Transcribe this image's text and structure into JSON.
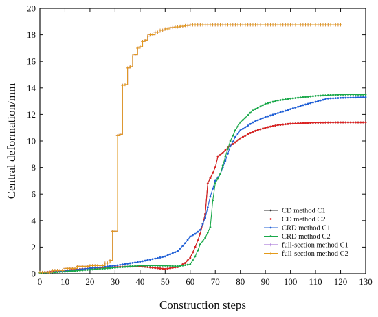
{
  "chart_data": {
    "type": "line",
    "title": "",
    "xlabel": "Construction steps",
    "ylabel": "Central deformation/mm",
    "xlim": [
      0,
      130
    ],
    "ylim": [
      0,
      20
    ],
    "xticks": [
      0,
      10,
      20,
      30,
      40,
      50,
      60,
      70,
      80,
      90,
      100,
      110,
      120,
      130
    ],
    "yticks": [
      0,
      2,
      4,
      6,
      8,
      10,
      12,
      14,
      16,
      18,
      20
    ],
    "grid": false,
    "legend_position": "lower-right",
    "series": [
      {
        "name": "CD method C1",
        "color": "#333333",
        "marker": "dot",
        "points": [
          [
            0,
            0.08
          ],
          [
            10,
            0.25
          ],
          [
            20,
            0.4
          ],
          [
            30,
            0.5
          ],
          [
            40,
            0.55
          ],
          [
            50,
            0.35
          ],
          [
            55,
            0.5
          ],
          [
            58,
            0.8
          ],
          [
            60,
            1.2
          ],
          [
            62,
            2.0
          ],
          [
            64,
            3.0
          ],
          [
            66,
            4.5
          ],
          [
            67,
            6.8
          ],
          [
            68,
            7.2
          ],
          [
            70,
            8.0
          ],
          [
            71,
            8.8
          ],
          [
            73,
            9.1
          ],
          [
            75,
            9.5
          ],
          [
            78,
            9.9
          ],
          [
            80,
            10.2
          ],
          [
            85,
            10.7
          ],
          [
            90,
            11.0
          ],
          [
            95,
            11.2
          ],
          [
            100,
            11.3
          ],
          [
            110,
            11.38
          ],
          [
            120,
            11.4
          ],
          [
            130,
            11.4
          ]
        ]
      },
      {
        "name": "CD method C2",
        "color": "#e02020",
        "marker": "dot",
        "points": [
          [
            0,
            0.08
          ],
          [
            10,
            0.25
          ],
          [
            20,
            0.4
          ],
          [
            30,
            0.5
          ],
          [
            40,
            0.55
          ],
          [
            50,
            0.35
          ],
          [
            55,
            0.5
          ],
          [
            58,
            0.8
          ],
          [
            60,
            1.2
          ],
          [
            62,
            2.0
          ],
          [
            64,
            3.0
          ],
          [
            66,
            4.5
          ],
          [
            67,
            6.8
          ],
          [
            68,
            7.2
          ],
          [
            70,
            8.0
          ],
          [
            71,
            8.8
          ],
          [
            73,
            9.1
          ],
          [
            75,
            9.5
          ],
          [
            78,
            9.9
          ],
          [
            80,
            10.2
          ],
          [
            85,
            10.7
          ],
          [
            90,
            11.0
          ],
          [
            95,
            11.2
          ],
          [
            100,
            11.3
          ],
          [
            110,
            11.38
          ],
          [
            120,
            11.4
          ],
          [
            130,
            11.4
          ]
        ]
      },
      {
        "name": "CRD method C1",
        "color": "#1f5fd6",
        "marker": "dot",
        "points": [
          [
            0,
            0.05
          ],
          [
            10,
            0.2
          ],
          [
            20,
            0.4
          ],
          [
            30,
            0.6
          ],
          [
            40,
            0.9
          ],
          [
            50,
            1.3
          ],
          [
            55,
            1.7
          ],
          [
            58,
            2.3
          ],
          [
            60,
            2.8
          ],
          [
            62,
            3.0
          ],
          [
            64,
            3.3
          ],
          [
            66,
            4.2
          ],
          [
            67,
            5.0
          ],
          [
            68,
            5.8
          ],
          [
            70,
            7.0
          ],
          [
            72,
            7.5
          ],
          [
            74,
            8.5
          ],
          [
            76,
            9.6
          ],
          [
            78,
            10.3
          ],
          [
            80,
            10.8
          ],
          [
            85,
            11.4
          ],
          [
            90,
            11.8
          ],
          [
            95,
            12.1
          ],
          [
            100,
            12.4
          ],
          [
            105,
            12.7
          ],
          [
            110,
            12.95
          ],
          [
            115,
            13.2
          ],
          [
            120,
            13.25
          ],
          [
            130,
            13.3
          ]
        ]
      },
      {
        "name": "CRD method C2",
        "color": "#1aa84a",
        "marker": "dot",
        "points": [
          [
            0,
            0.05
          ],
          [
            10,
            0.15
          ],
          [
            20,
            0.3
          ],
          [
            30,
            0.45
          ],
          [
            40,
            0.6
          ],
          [
            50,
            0.6
          ],
          [
            55,
            0.55
          ],
          [
            60,
            0.7
          ],
          [
            62,
            1.3
          ],
          [
            64,
            2.2
          ],
          [
            66,
            2.7
          ],
          [
            68,
            3.5
          ],
          [
            69,
            5.5
          ],
          [
            70,
            6.8
          ],
          [
            72,
            7.5
          ],
          [
            74,
            8.8
          ],
          [
            76,
            10.0
          ],
          [
            78,
            10.8
          ],
          [
            80,
            11.4
          ],
          [
            85,
            12.3
          ],
          [
            90,
            12.8
          ],
          [
            95,
            13.05
          ],
          [
            100,
            13.2
          ],
          [
            105,
            13.3
          ],
          [
            110,
            13.4
          ],
          [
            115,
            13.45
          ],
          [
            120,
            13.5
          ],
          [
            130,
            13.5
          ]
        ]
      },
      {
        "name": "full-section method C1",
        "color": "#9a5fd0",
        "marker": "plus",
        "points": [
          [
            0,
            0.1
          ],
          [
            5,
            0.25
          ],
          [
            10,
            0.4
          ],
          [
            15,
            0.55
          ],
          [
            20,
            0.6
          ],
          [
            25,
            0.6
          ],
          [
            26,
            0.8
          ],
          [
            28,
            1.0
          ],
          [
            29,
            3.2
          ],
          [
            30,
            3.2
          ],
          [
            31,
            10.4
          ],
          [
            32,
            10.5
          ],
          [
            33,
            14.2
          ],
          [
            34,
            14.25
          ],
          [
            35,
            15.5
          ],
          [
            36,
            15.6
          ],
          [
            37,
            16.4
          ],
          [
            38,
            16.5
          ],
          [
            39,
            17.0
          ],
          [
            40,
            17.1
          ],
          [
            41,
            17.5
          ],
          [
            42,
            17.6
          ],
          [
            43,
            17.9
          ],
          [
            44,
            18.0
          ],
          [
            46,
            18.2
          ],
          [
            48,
            18.35
          ],
          [
            50,
            18.45
          ],
          [
            52,
            18.55
          ],
          [
            54,
            18.6
          ],
          [
            56,
            18.65
          ],
          [
            58,
            18.7
          ],
          [
            60,
            18.75
          ],
          [
            70,
            18.75
          ],
          [
            80,
            18.75
          ],
          [
            90,
            18.75
          ],
          [
            100,
            18.75
          ],
          [
            110,
            18.75
          ],
          [
            120,
            18.75
          ]
        ]
      },
      {
        "name": "full-section method C2",
        "color": "#e39a1a",
        "marker": "plus",
        "points": [
          [
            0,
            0.1
          ],
          [
            5,
            0.25
          ],
          [
            10,
            0.4
          ],
          [
            15,
            0.55
          ],
          [
            20,
            0.6
          ],
          [
            25,
            0.6
          ],
          [
            26,
            0.8
          ],
          [
            28,
            1.0
          ],
          [
            29,
            3.2
          ],
          [
            30,
            3.2
          ],
          [
            31,
            10.4
          ],
          [
            32,
            10.5
          ],
          [
            33,
            14.2
          ],
          [
            34,
            14.25
          ],
          [
            35,
            15.5
          ],
          [
            36,
            15.6
          ],
          [
            37,
            16.4
          ],
          [
            38,
            16.5
          ],
          [
            39,
            17.0
          ],
          [
            40,
            17.1
          ],
          [
            41,
            17.5
          ],
          [
            42,
            17.6
          ],
          [
            43,
            17.9
          ],
          [
            44,
            18.0
          ],
          [
            46,
            18.2
          ],
          [
            48,
            18.35
          ],
          [
            50,
            18.45
          ],
          [
            52,
            18.55
          ],
          [
            54,
            18.6
          ],
          [
            56,
            18.65
          ],
          [
            58,
            18.7
          ],
          [
            60,
            18.75
          ],
          [
            70,
            18.75
          ],
          [
            80,
            18.75
          ],
          [
            90,
            18.75
          ],
          [
            100,
            18.75
          ],
          [
            110,
            18.75
          ],
          [
            120,
            18.75
          ]
        ]
      }
    ]
  }
}
